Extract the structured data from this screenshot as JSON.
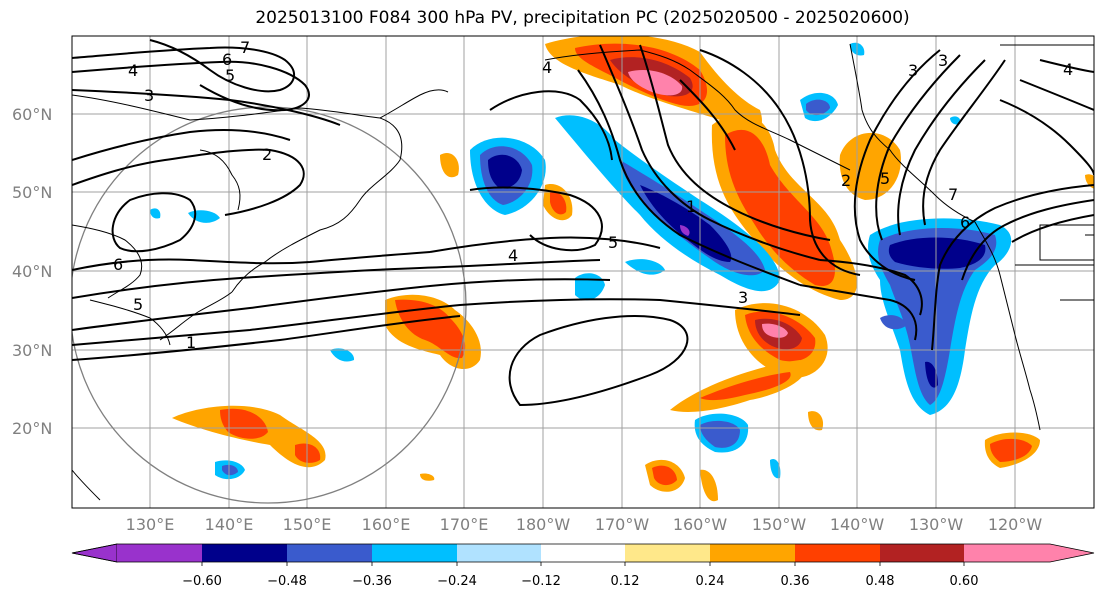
{
  "title": "2025013100 F084 300 hPa PV, precipitation PC (2025020500 - 2025020600)",
  "lat_labels": [
    "60°N",
    "50°N",
    "40°N",
    "30°N",
    "20°N"
  ],
  "lon_labels": [
    "130°E",
    "140°E",
    "150°E",
    "160°E",
    "170°E",
    "180°W",
    "170°W",
    "160°W",
    "150°W",
    "140°W",
    "130°W",
    "120°W"
  ],
  "contour_labels": [
    "7",
    "6",
    "5",
    "4",
    "3",
    "2",
    "6",
    "5",
    "4",
    "1",
    "5",
    "4",
    "3",
    "1",
    "2",
    "5",
    "3",
    "4",
    "3",
    "7",
    "6"
  ],
  "colorbar": {
    "ticks": [
      "−0.60",
      "−0.48",
      "−0.36",
      "−0.24",
      "−0.12",
      "0.12",
      "0.24",
      "0.36",
      "0.48",
      "0.60"
    ],
    "colors": [
      "#9932cc",
      "#00008b",
      "#3a5bcd",
      "#00bfff",
      "#b0e2ff",
      "#ffffff",
      "#ffe88a",
      "#ffa500",
      "#ff4000",
      "#b22222",
      "#ff82ab"
    ]
  }
}
